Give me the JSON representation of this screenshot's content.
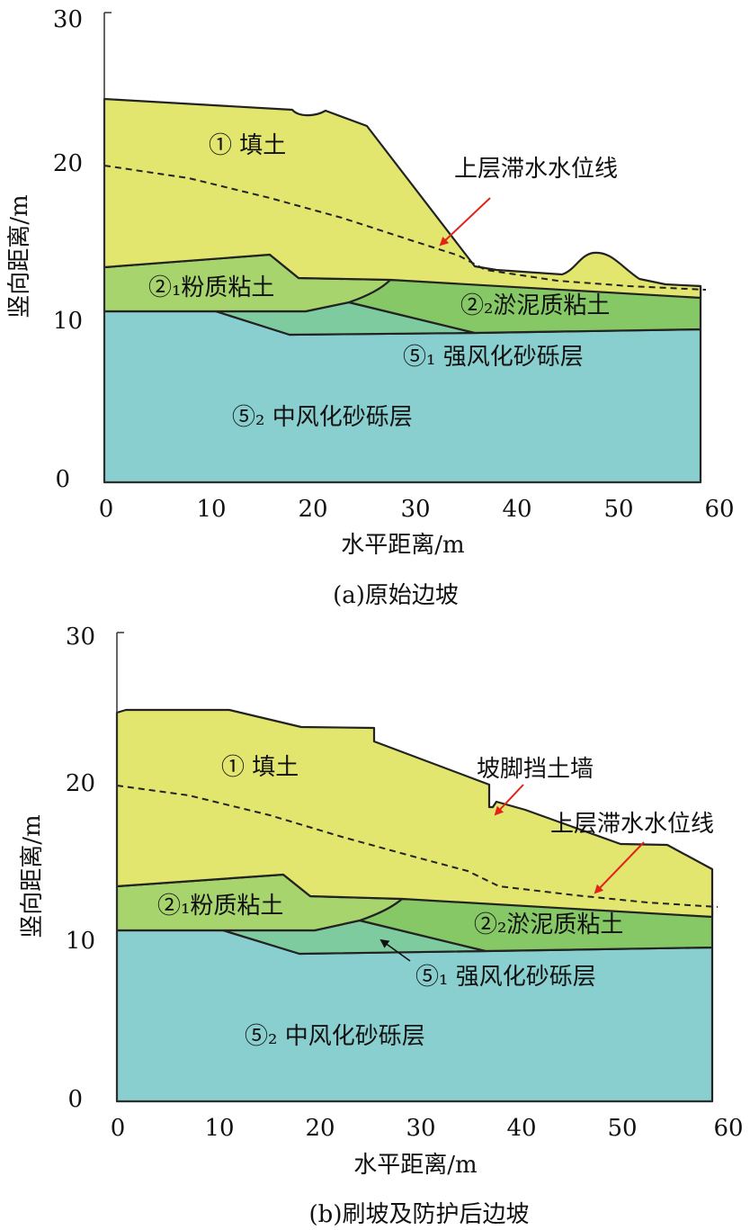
{
  "panels": [
    {
      "caption": "(a)原始边坡",
      "xlabel": "水平距离/m",
      "ylabel": "竖向距离/m",
      "xticks": [
        "0",
        "10",
        "20",
        "30",
        "40",
        "50",
        "60"
      ],
      "yticks": [
        "0",
        "10",
        "20",
        "30"
      ],
      "labels": {
        "fill": "① 填土",
        "silty_clay": "②₁粉质粘土",
        "mucky_clay": "②₂淤泥质粘土",
        "strong_weathered": "⑤₁ 强风化砂砾层",
        "medium_weathered": "⑤₂ 中风化砂砾层",
        "water_line": "上层滞水水位线"
      }
    },
    {
      "caption": "(b)刷坡及防护后边坡",
      "xlabel": "水平距离/m",
      "ylabel": "竖向距离/m",
      "xticks": [
        "0",
        "10",
        "20",
        "30",
        "40",
        "50",
        "60"
      ],
      "yticks": [
        "0",
        "10",
        "20",
        "30"
      ],
      "labels": {
        "fill": "① 填土",
        "silty_clay": "②₁粉质粘土",
        "mucky_clay": "②₂淤泥质粘土",
        "strong_weathered": "⑤₁ 强风化砂砾层",
        "medium_weathered": "⑤₂ 中风化砂砾层",
        "water_line": "上层滞水水位线",
        "retaining_wall": "坡脚挡土墙"
      }
    }
  ],
  "colors": {
    "fill": "#e2e66e",
    "silty_clay": "#a7d46d",
    "mucky_clay": "#86c766",
    "strong_weathered": "#7fcba0",
    "medium_weathered": "#89cfcf",
    "arrow": "#e2231a"
  }
}
